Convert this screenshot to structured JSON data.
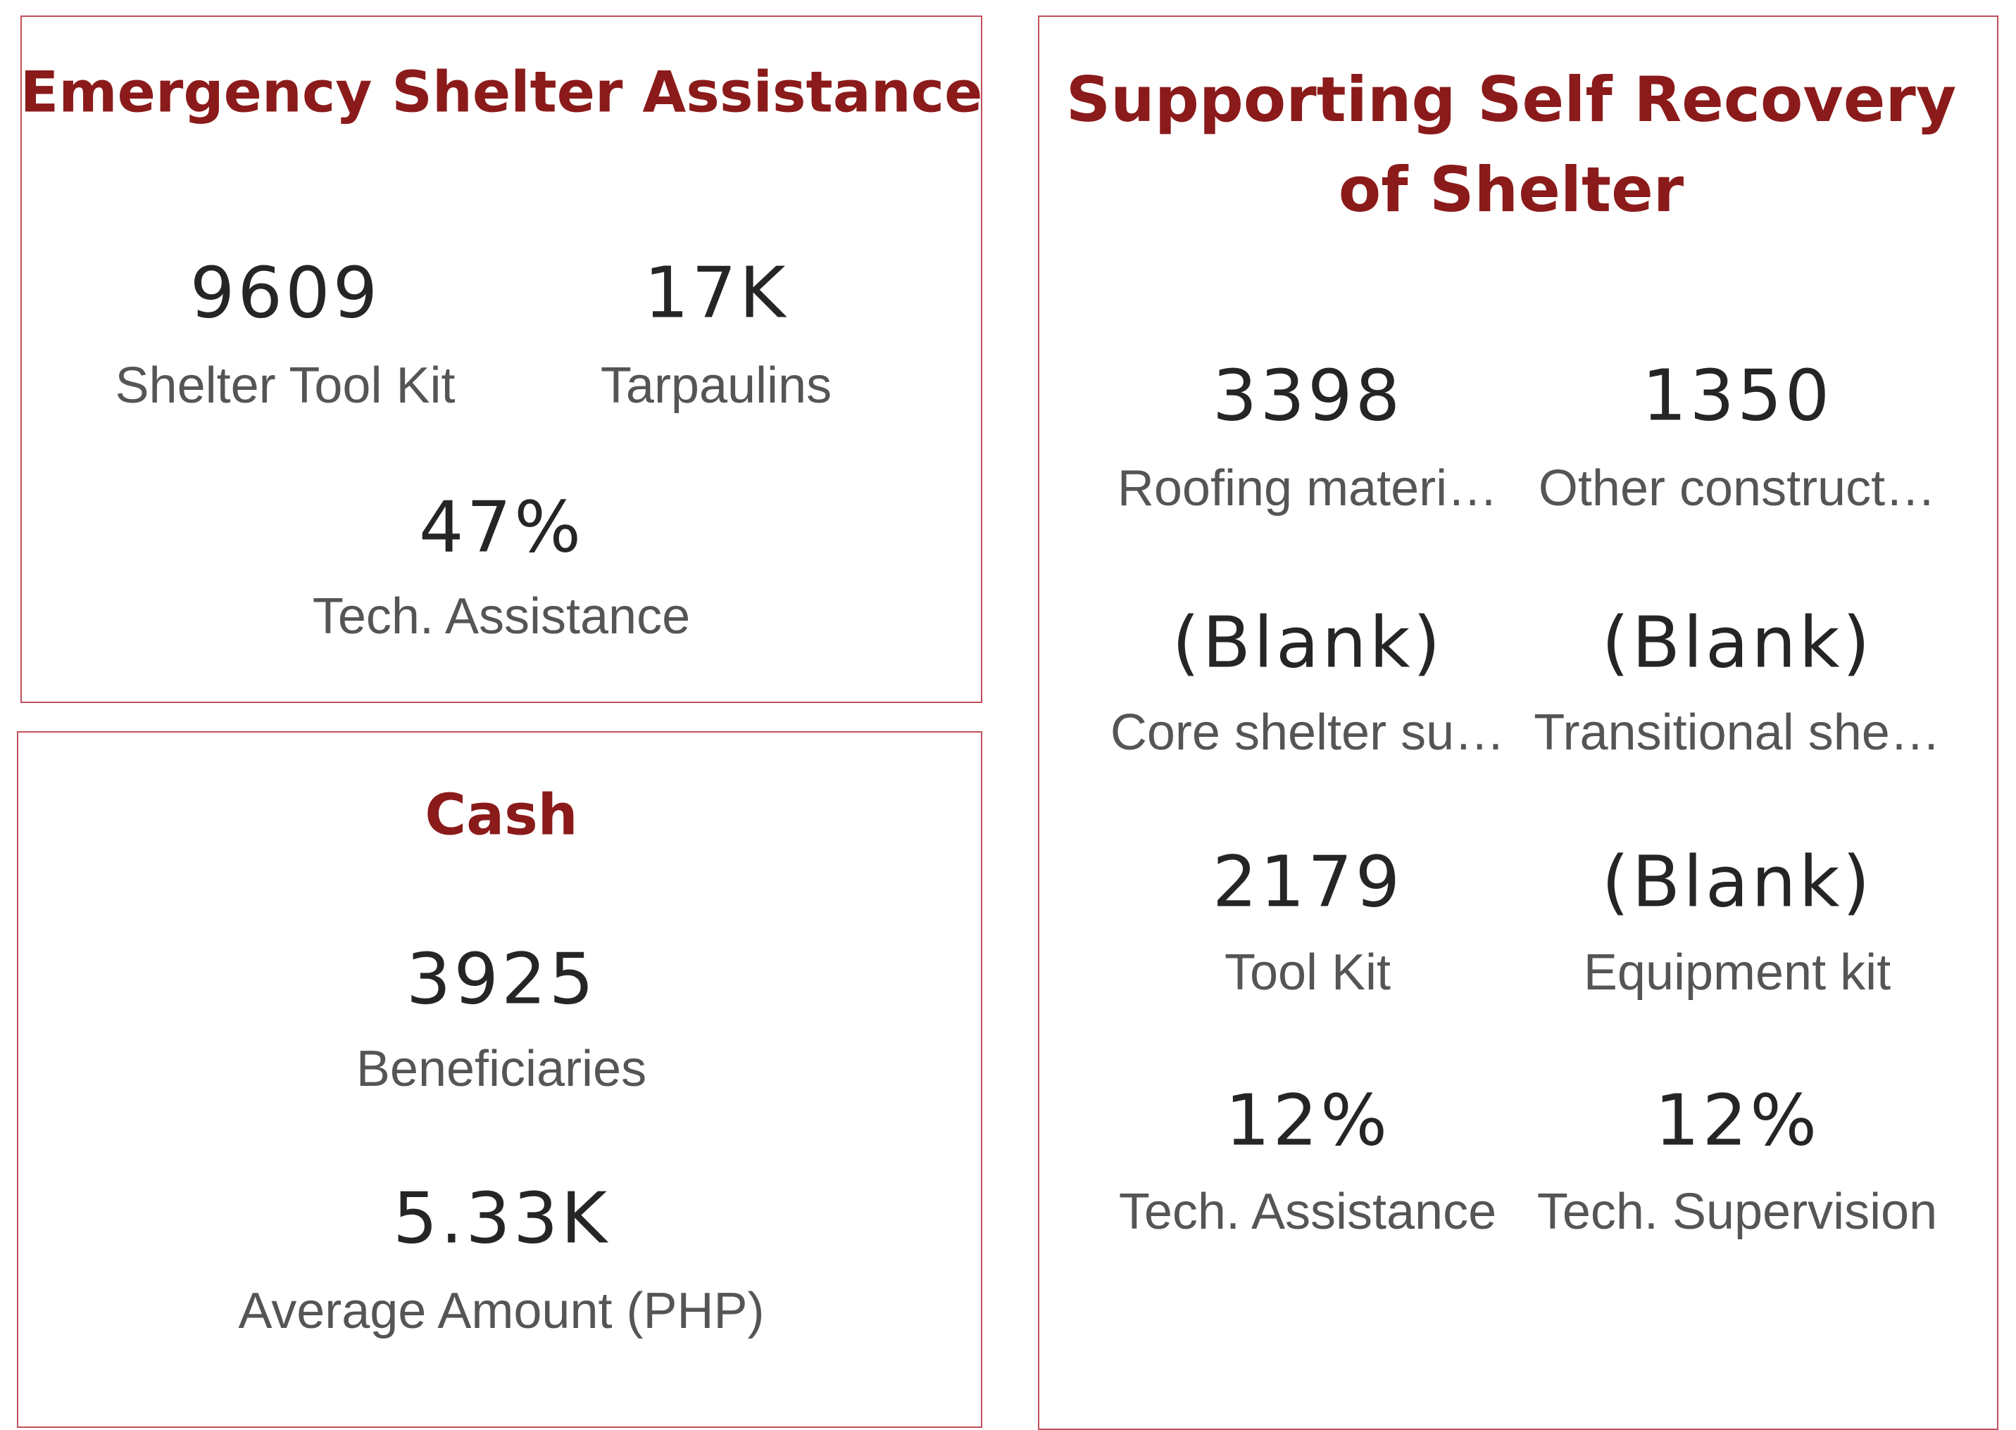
{
  "panels": [
    {
      "title": "Emergency Shelter Assistance",
      "cards": [
        {
          "value": "9609",
          "label": "Shelter Tool Kit"
        },
        {
          "value": "17K",
          "label": "Tarpaulins"
        },
        {
          "value": "47%",
          "label": "Tech. Assistance"
        }
      ]
    },
    {
      "title": "Cash",
      "cards": [
        {
          "value": "3925",
          "label": "Beneficiaries"
        },
        {
          "value": "5.33K",
          "label": "Average Amount (PHP)"
        }
      ]
    },
    {
      "title": "Supporting Self Recovery of Shelter",
      "cards": [
        {
          "value": "3398",
          "label": "Roofing materi…"
        },
        {
          "value": "1350",
          "label": "Other construct…"
        },
        {
          "value": "(Blank)",
          "label": "Core shelter su…"
        },
        {
          "value": "(Blank)",
          "label": "Transitional she…"
        },
        {
          "value": "2179",
          "label": "Tool Kit"
        },
        {
          "value": "(Blank)",
          "label": "Equipment kit"
        },
        {
          "value": "12%",
          "label": "Tech. Assistance"
        },
        {
          "value": "12%",
          "label": "Tech. Supervision"
        }
      ]
    }
  ]
}
